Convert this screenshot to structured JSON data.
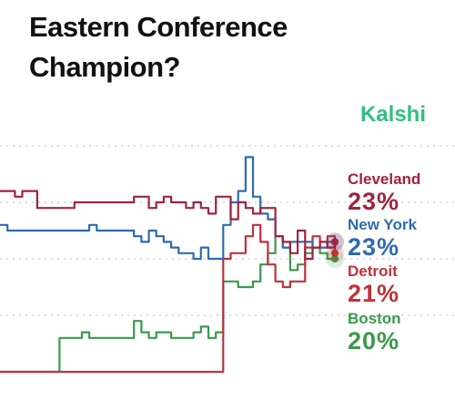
{
  "header": {
    "title_line1": "Eastern Conference",
    "title_line2": "Champion?",
    "brand": "Kalshi"
  },
  "chart_data": {
    "type": "line",
    "title": "Eastern Conference Champion?",
    "ylim": [
      0,
      40
    ],
    "grid": true,
    "legend_placement": "right",
    "series": [
      {
        "name": "Cleveland",
        "label": "23%",
        "color": "#a0233f",
        "values": [
          32,
          32,
          31,
          32,
          32,
          29,
          29,
          29,
          29,
          29,
          30,
          30,
          30,
          30,
          30,
          30,
          30,
          30,
          31,
          31,
          29,
          30,
          31,
          30,
          30,
          29,
          30,
          29,
          28,
          31,
          31,
          27,
          30,
          29,
          28,
          29,
          29,
          24,
          23,
          21,
          25,
          20,
          22,
          23,
          22,
          23
        ]
      },
      {
        "name": "New York",
        "label": "23%",
        "color": "#2e6bb0",
        "values": [
          26,
          25,
          25,
          25,
          25,
          25,
          25,
          25,
          25,
          25,
          25,
          25,
          26,
          25,
          25,
          25,
          25,
          25,
          24,
          23,
          25,
          24,
          23,
          22,
          21,
          21,
          20,
          22,
          20,
          20,
          26,
          30,
          32,
          38,
          31,
          28,
          27,
          24,
          22,
          23,
          23,
          23,
          22,
          22,
          23,
          23
        ]
      },
      {
        "name": "Detroit",
        "label": "21%",
        "color": "#c0313a",
        "values": [
          0,
          0,
          0,
          0,
          0,
          0,
          0,
          0,
          0,
          0,
          0,
          0,
          0,
          0,
          0,
          0,
          0,
          0,
          0,
          0,
          0,
          0,
          0,
          0,
          0,
          0,
          0,
          0,
          0,
          0,
          20,
          21,
          21,
          24,
          26,
          23,
          19,
          16,
          15,
          16,
          16,
          22,
          24,
          22,
          24,
          21
        ]
      },
      {
        "name": "Boston",
        "label": "20%",
        "color": "#3a9a4a",
        "values": [
          0,
          0,
          0,
          0,
          0,
          0,
          0,
          0,
          6,
          6,
          6,
          7,
          6,
          6,
          6,
          6,
          6,
          6,
          9,
          7,
          6,
          7,
          7,
          6,
          6,
          6,
          7,
          8,
          6,
          7,
          16,
          16,
          15,
          15,
          16,
          19,
          21,
          24,
          22,
          18,
          19,
          21,
          22,
          21,
          20,
          20
        ]
      }
    ]
  }
}
